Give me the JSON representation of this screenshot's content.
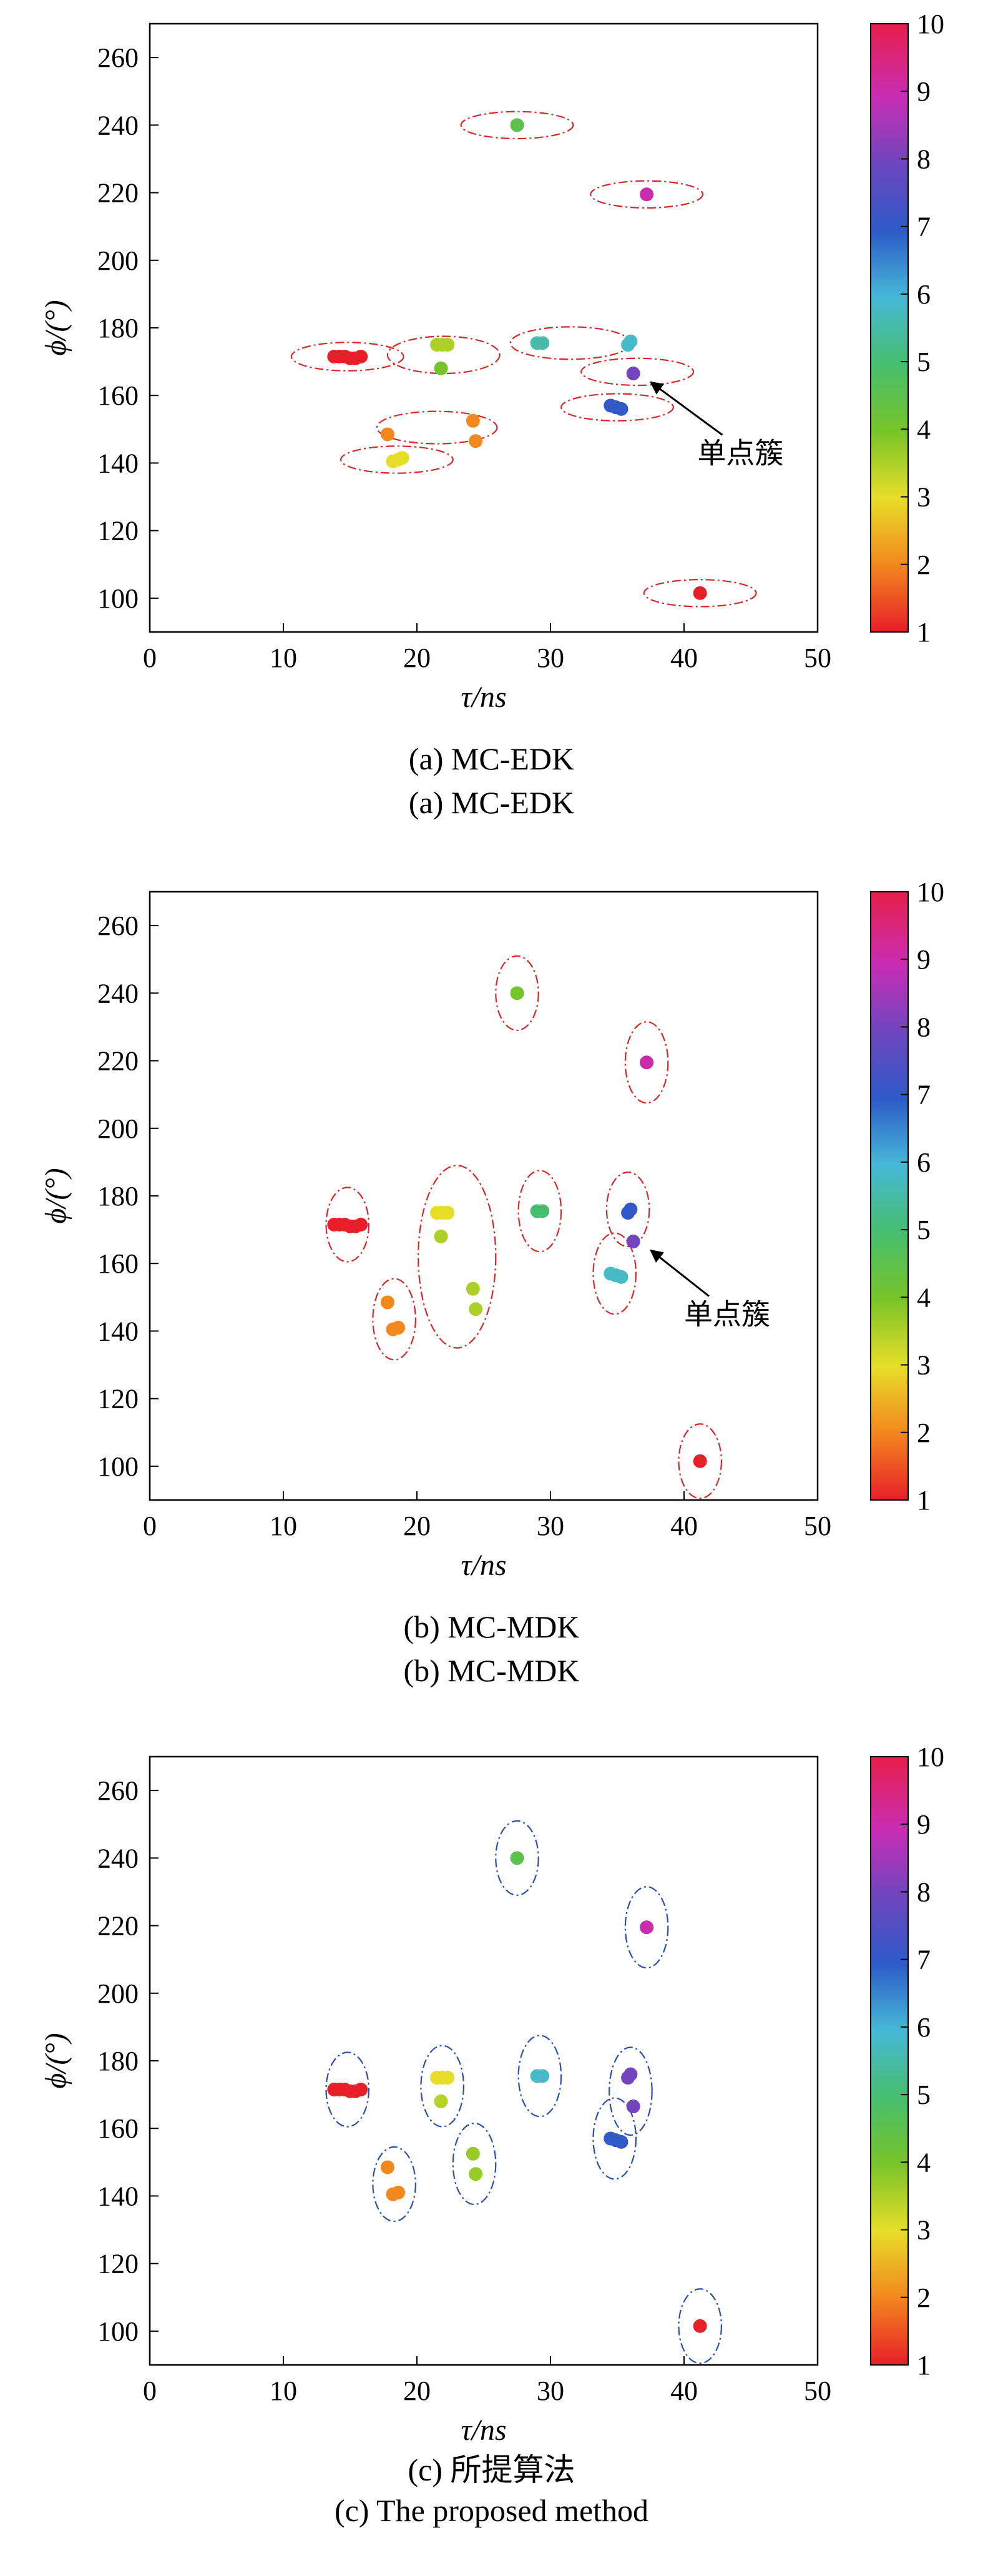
{
  "figure": {
    "captions": [
      {
        "line1": "(a) MC-EDK",
        "line2": "(a) MC-EDK"
      },
      {
        "line1": "(b) MC-MDK",
        "line2": "(b) MC-MDK"
      },
      {
        "line1": "(c) 所提算法",
        "line2": "(c) The proposed method"
      }
    ]
  },
  "chart_data": [
    {
      "type": "scatter",
      "panel": "a",
      "xlabel": "τ/ns",
      "ylabel": "ϕ/(°)",
      "xlim": [
        0,
        50
      ],
      "ylim": [
        90,
        270
      ],
      "xticks": [
        0,
        10,
        20,
        30,
        40,
        50
      ],
      "yticks": [
        100,
        120,
        140,
        160,
        180,
        200,
        220,
        240,
        260
      ],
      "grid": false,
      "colorbar": {
        "range": [
          1,
          10
        ],
        "ticks": [
          1,
          2,
          3,
          4,
          5,
          6,
          7,
          8,
          9,
          10
        ]
      },
      "cluster_outline_color": "#d62728",
      "annotation": {
        "text": "单点簇",
        "points_to": [
          36.2,
          166.5
        ],
        "text_at": [
          41,
          140
        ]
      },
      "points": [
        {
          "x": 13.8,
          "y": 171.5,
          "c": 1
        },
        {
          "x": 14.2,
          "y": 171.5,
          "c": 1
        },
        {
          "x": 14.6,
          "y": 171.5,
          "c": 1
        },
        {
          "x": 15.0,
          "y": 171.0,
          "c": 1
        },
        {
          "x": 15.4,
          "y": 171.0,
          "c": 1
        },
        {
          "x": 15.8,
          "y": 171.5,
          "c": 1
        },
        {
          "x": 41.2,
          "y": 101.5,
          "c": 1
        },
        {
          "x": 17.8,
          "y": 148.5,
          "c": 2
        },
        {
          "x": 24.2,
          "y": 152.5,
          "c": 2
        },
        {
          "x": 24.4,
          "y": 146.5,
          "c": 2
        },
        {
          "x": 18.2,
          "y": 140.5,
          "c": 3
        },
        {
          "x": 18.6,
          "y": 141.0,
          "c": 3
        },
        {
          "x": 18.9,
          "y": 141.5,
          "c": 3
        },
        {
          "x": 21.5,
          "y": 175.0,
          "c": 3.5
        },
        {
          "x": 21.9,
          "y": 175.0,
          "c": 3.5
        },
        {
          "x": 22.3,
          "y": 175.0,
          "c": 3.5
        },
        {
          "x": 21.8,
          "y": 168.0,
          "c": 4
        },
        {
          "x": 27.5,
          "y": 240.0,
          "c": 4.5
        },
        {
          "x": 29.0,
          "y": 175.5,
          "c": 5.5
        },
        {
          "x": 29.4,
          "y": 175.5,
          "c": 5.5
        },
        {
          "x": 35.8,
          "y": 175.0,
          "c": 5.8
        },
        {
          "x": 36.0,
          "y": 176.0,
          "c": 5.8
        },
        {
          "x": 34.5,
          "y": 157.0,
          "c": 7
        },
        {
          "x": 34.9,
          "y": 156.5,
          "c": 7
        },
        {
          "x": 35.3,
          "y": 156.0,
          "c": 7
        },
        {
          "x": 36.2,
          "y": 166.5,
          "c": 8
        },
        {
          "x": 37.2,
          "y": 219.5,
          "c": 9
        }
      ],
      "clusters": [
        {
          "cx": 14.8,
          "cy": 171.5,
          "rx": 4.2,
          "ry": 4.2
        },
        {
          "cx": 22.0,
          "cy": 172.0,
          "rx": 4.2,
          "ry": 5.5
        },
        {
          "cx": 21.5,
          "cy": 150.5,
          "rx": 4.5,
          "ry": 4.8
        },
        {
          "cx": 18.5,
          "cy": 141.0,
          "rx": 4.2,
          "ry": 4.0
        },
        {
          "cx": 27.5,
          "cy": 240.0,
          "rx": 4.2,
          "ry": 4.0
        },
        {
          "cx": 37.2,
          "cy": 219.5,
          "rx": 4.2,
          "ry": 4.0
        },
        {
          "cx": 31.5,
          "cy": 175.5,
          "rx": 4.5,
          "ry": 4.8
        },
        {
          "cx": 36.5,
          "cy": 167.0,
          "rx": 4.2,
          "ry": 4.0
        },
        {
          "cx": 35.0,
          "cy": 156.5,
          "rx": 4.2,
          "ry": 4.0
        },
        {
          "cx": 41.2,
          "cy": 101.5,
          "rx": 4.2,
          "ry": 4.0
        }
      ]
    },
    {
      "type": "scatter",
      "panel": "b",
      "xlabel": "τ/ns",
      "ylabel": "ϕ/(°)",
      "xlim": [
        0,
        50
      ],
      "ylim": [
        90,
        270
      ],
      "xticks": [
        0,
        10,
        20,
        30,
        40,
        50
      ],
      "yticks": [
        100,
        120,
        140,
        160,
        180,
        200,
        220,
        240,
        260
      ],
      "grid": false,
      "colorbar": {
        "range": [
          1,
          10
        ],
        "ticks": [
          1,
          2,
          3,
          4,
          5,
          6,
          7,
          8,
          9,
          10
        ]
      },
      "cluster_outline_color": "#d62728",
      "annotation": {
        "text": "单点簇",
        "points_to": [
          36.2,
          166.5
        ],
        "text_at": [
          40,
          142
        ]
      },
      "points": [
        {
          "x": 13.8,
          "y": 171.5,
          "c": 1
        },
        {
          "x": 14.2,
          "y": 171.5,
          "c": 1
        },
        {
          "x": 14.6,
          "y": 171.5,
          "c": 1
        },
        {
          "x": 15.0,
          "y": 171.0,
          "c": 1
        },
        {
          "x": 15.4,
          "y": 171.0,
          "c": 1
        },
        {
          "x": 15.8,
          "y": 171.5,
          "c": 1
        },
        {
          "x": 41.2,
          "y": 101.5,
          "c": 1
        },
        {
          "x": 17.8,
          "y": 148.5,
          "c": 2
        },
        {
          "x": 18.2,
          "y": 140.5,
          "c": 2
        },
        {
          "x": 18.6,
          "y": 141.0,
          "c": 2
        },
        {
          "x": 21.5,
          "y": 175.0,
          "c": 3
        },
        {
          "x": 21.9,
          "y": 175.0,
          "c": 3
        },
        {
          "x": 22.3,
          "y": 175.0,
          "c": 3
        },
        {
          "x": 21.8,
          "y": 168.0,
          "c": 3.5
        },
        {
          "x": 24.2,
          "y": 152.5,
          "c": 3.5
        },
        {
          "x": 24.4,
          "y": 146.5,
          "c": 3.5
        },
        {
          "x": 27.5,
          "y": 240.0,
          "c": 4
        },
        {
          "x": 29.0,
          "y": 175.5,
          "c": 5
        },
        {
          "x": 29.4,
          "y": 175.5,
          "c": 5
        },
        {
          "x": 34.5,
          "y": 157.0,
          "c": 5.8
        },
        {
          "x": 34.9,
          "y": 156.5,
          "c": 5.8
        },
        {
          "x": 35.3,
          "y": 156.0,
          "c": 5.8
        },
        {
          "x": 35.8,
          "y": 175.0,
          "c": 7
        },
        {
          "x": 36.0,
          "y": 176.0,
          "c": 7
        },
        {
          "x": 36.2,
          "y": 166.5,
          "c": 8
        },
        {
          "x": 37.2,
          "y": 219.5,
          "c": 9
        }
      ],
      "clusters": [
        {
          "cx": 14.8,
          "cy": 171.5,
          "rx": 1.6,
          "ry": 11
        },
        {
          "cx": 18.3,
          "cy": 143.5,
          "rx": 1.6,
          "ry": 12
        },
        {
          "cx": 23.0,
          "cy": 162.0,
          "rx": 2.9,
          "ry": 27
        },
        {
          "cx": 27.5,
          "cy": 240.0,
          "rx": 1.6,
          "ry": 11
        },
        {
          "cx": 29.2,
          "cy": 175.5,
          "rx": 1.6,
          "ry": 12
        },
        {
          "cx": 37.2,
          "cy": 219.5,
          "rx": 1.6,
          "ry": 12
        },
        {
          "cx": 35.8,
          "cy": 176.0,
          "rx": 1.6,
          "ry": 11
        },
        {
          "cx": 34.8,
          "cy": 157.0,
          "rx": 1.6,
          "ry": 12
        },
        {
          "cx": 41.2,
          "cy": 101.5,
          "rx": 1.6,
          "ry": 11
        }
      ]
    },
    {
      "type": "scatter",
      "panel": "c",
      "xlabel": "τ/ns",
      "ylabel": "ϕ/(°)",
      "xlim": [
        0,
        50
      ],
      "ylim": [
        90,
        270
      ],
      "xticks": [
        0,
        10,
        20,
        30,
        40,
        50
      ],
      "yticks": [
        100,
        120,
        140,
        160,
        180,
        200,
        220,
        240,
        260
      ],
      "grid": false,
      "colorbar": {
        "range": [
          1,
          10
        ],
        "ticks": [
          1,
          2,
          3,
          4,
          5,
          6,
          7,
          8,
          9,
          10
        ]
      },
      "cluster_outline_color": "#2a4fb0",
      "points": [
        {
          "x": 13.8,
          "y": 171.5,
          "c": 1
        },
        {
          "x": 14.2,
          "y": 171.5,
          "c": 1
        },
        {
          "x": 14.6,
          "y": 171.5,
          "c": 1
        },
        {
          "x": 15.0,
          "y": 171.0,
          "c": 1
        },
        {
          "x": 15.4,
          "y": 171.0,
          "c": 1
        },
        {
          "x": 15.8,
          "y": 171.5,
          "c": 1
        },
        {
          "x": 41.2,
          "y": 101.5,
          "c": 1
        },
        {
          "x": 17.8,
          "y": 148.5,
          "c": 2
        },
        {
          "x": 18.2,
          "y": 140.5,
          "c": 2
        },
        {
          "x": 18.6,
          "y": 141.0,
          "c": 2
        },
        {
          "x": 21.5,
          "y": 175.0,
          "c": 3
        },
        {
          "x": 21.9,
          "y": 175.0,
          "c": 3
        },
        {
          "x": 22.3,
          "y": 175.0,
          "c": 3
        },
        {
          "x": 21.8,
          "y": 168.0,
          "c": 3.4
        },
        {
          "x": 24.2,
          "y": 152.5,
          "c": 3.7
        },
        {
          "x": 24.4,
          "y": 146.5,
          "c": 3.7
        },
        {
          "x": 27.5,
          "y": 240.0,
          "c": 4.5
        },
        {
          "x": 29.0,
          "y": 175.5,
          "c": 5.8
        },
        {
          "x": 29.4,
          "y": 175.5,
          "c": 5.8
        },
        {
          "x": 34.5,
          "y": 157.0,
          "c": 7
        },
        {
          "x": 34.9,
          "y": 156.5,
          "c": 7
        },
        {
          "x": 35.3,
          "y": 156.0,
          "c": 7
        },
        {
          "x": 35.8,
          "y": 175.0,
          "c": 8
        },
        {
          "x": 36.0,
          "y": 176.0,
          "c": 8
        },
        {
          "x": 36.2,
          "y": 166.5,
          "c": 8
        },
        {
          "x": 37.2,
          "y": 219.5,
          "c": 9
        }
      ],
      "clusters": [
        {
          "cx": 14.8,
          "cy": 171.5,
          "rx": 1.6,
          "ry": 11
        },
        {
          "cx": 18.3,
          "cy": 143.5,
          "rx": 1.6,
          "ry": 11
        },
        {
          "cx": 21.9,
          "cy": 172.5,
          "rx": 1.6,
          "ry": 12
        },
        {
          "cx": 24.3,
          "cy": 149.5,
          "rx": 1.6,
          "ry": 12
        },
        {
          "cx": 27.5,
          "cy": 240.0,
          "rx": 1.6,
          "ry": 11
        },
        {
          "cx": 29.2,
          "cy": 175.5,
          "rx": 1.6,
          "ry": 12
        },
        {
          "cx": 36.0,
          "cy": 171.0,
          "rx": 1.6,
          "ry": 13
        },
        {
          "cx": 37.2,
          "cy": 219.5,
          "rx": 1.6,
          "ry": 12
        },
        {
          "cx": 34.8,
          "cy": 157.0,
          "rx": 1.6,
          "ry": 12
        },
        {
          "cx": 41.2,
          "cy": 101.5,
          "rx": 1.6,
          "ry": 11
        }
      ]
    }
  ]
}
